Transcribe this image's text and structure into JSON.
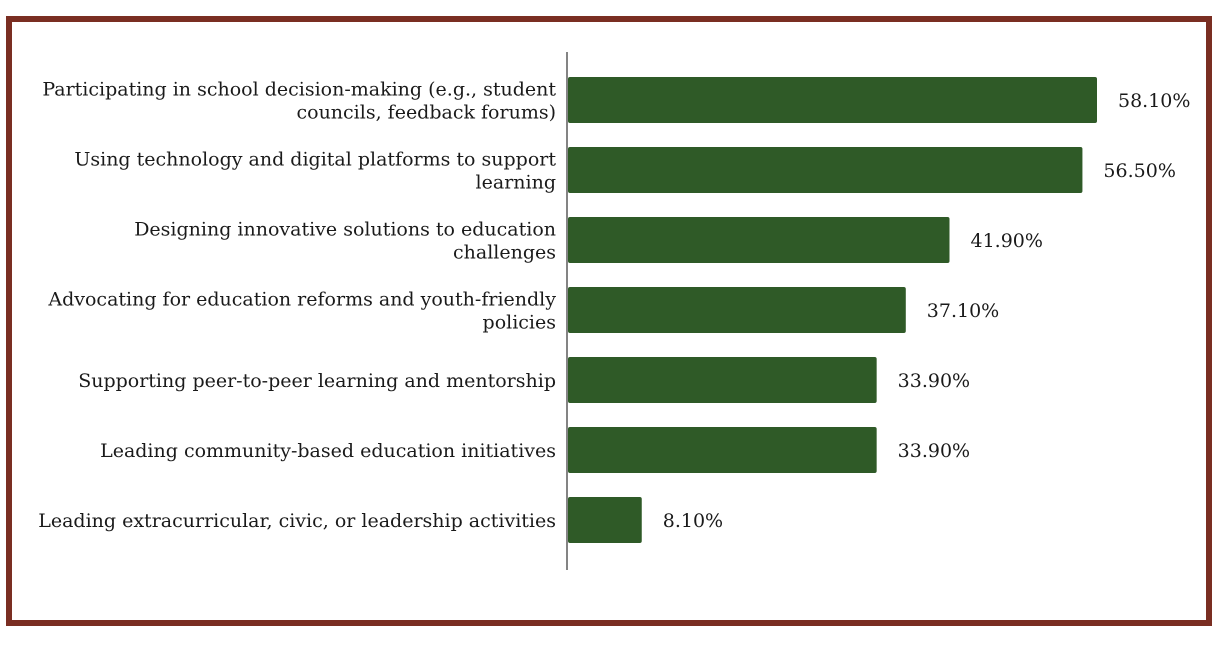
{
  "colors": {
    "frame": "#7a2e22",
    "bar": "#2f5a27",
    "axis": "#333333"
  },
  "chart_data": {
    "type": "bar",
    "orientation": "horizontal",
    "title": "",
    "xlabel": "",
    "ylabel": "",
    "xlim": [
      0,
      60
    ],
    "grid": false,
    "categories": [
      [
        "Participating in school decision-making (e.g., student",
        "councils, feedback forums)"
      ],
      [
        "Using technology and digital platforms to support",
        "learning"
      ],
      [
        "Designing innovative solutions to education",
        "challenges"
      ],
      [
        "Advocating for education reforms and youth-friendly",
        "policies"
      ],
      [
        "Supporting peer-to-peer learning and mentorship"
      ],
      [
        "Leading community-based education initiatives"
      ],
      [
        "Leading extracurricular, civic, or leadership activities"
      ]
    ],
    "values": [
      58.1,
      56.5,
      41.9,
      37.1,
      33.9,
      33.9,
      8.1
    ],
    "value_labels": [
      "58.10%",
      "56.50%",
      "41.90%",
      "37.10%",
      "33.90%",
      "33.90%",
      "8.10%"
    ]
  }
}
